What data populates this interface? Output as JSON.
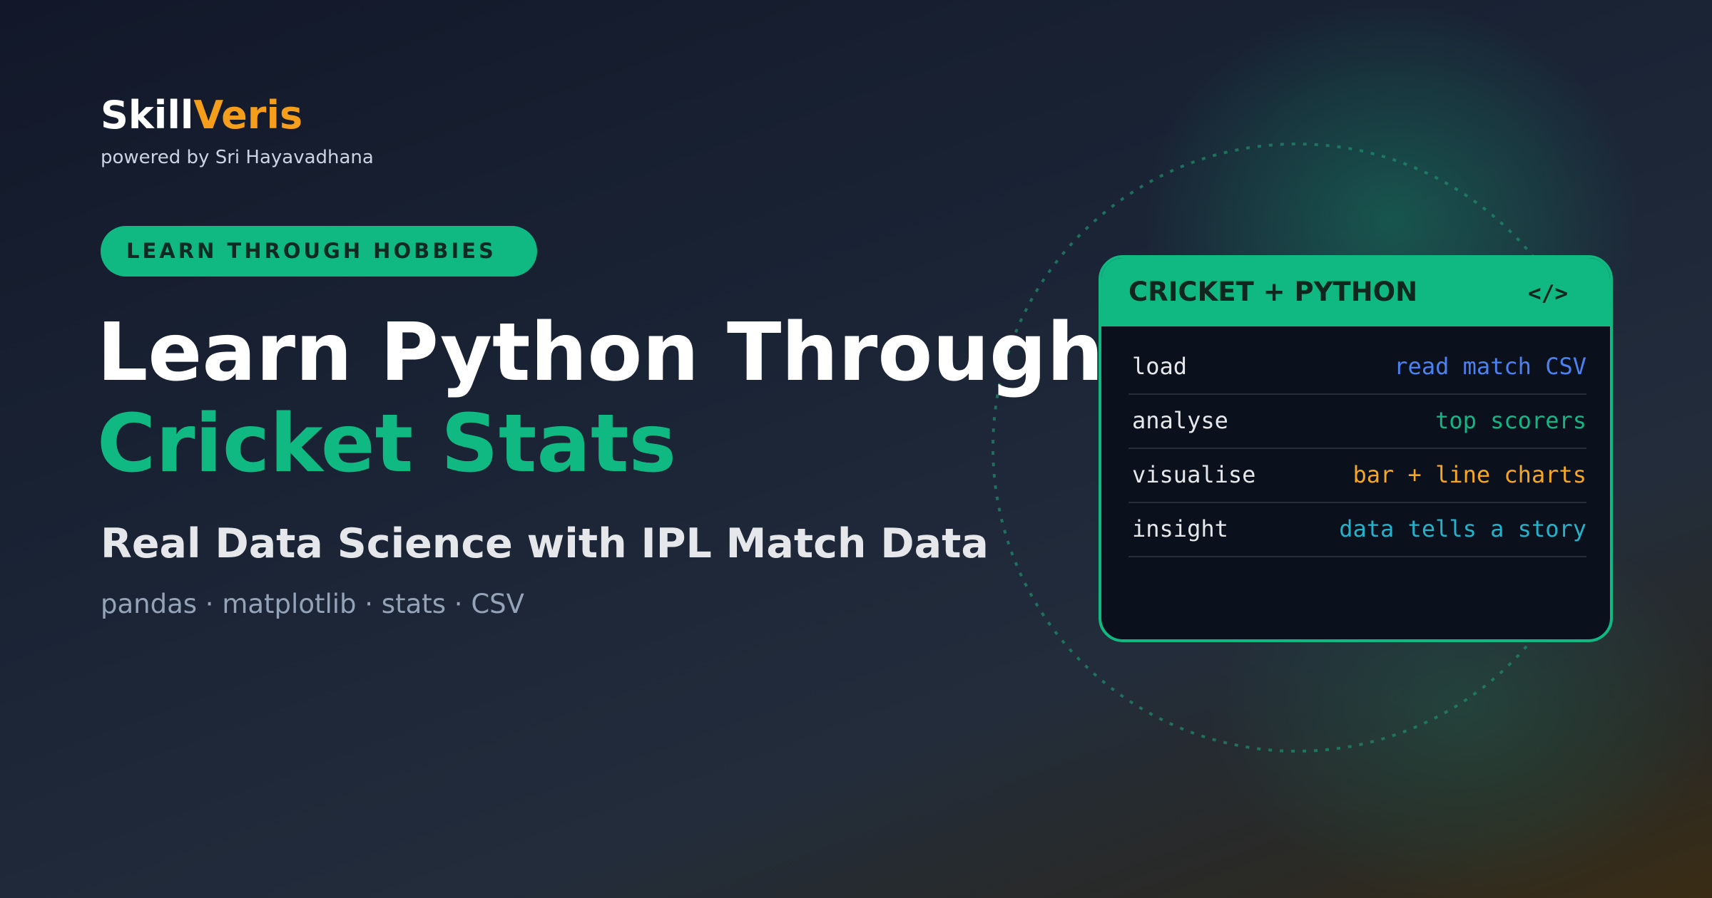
{
  "logo": {
    "part1": "Skill",
    "part2": "Veris",
    "tagline": "powered by Sri Hayavadhana"
  },
  "badge": "LEARN THROUGH HOBBIES",
  "heading": {
    "line1": "Learn Python Through",
    "line2": "Cricket Stats"
  },
  "subtitle": "Real Data Science with IPL Match Data",
  "topics": "pandas · matplotlib · stats · CSV",
  "card": {
    "title": "CRICKET + PYTHON",
    "icon": "</>",
    "rows": [
      {
        "label": "load",
        "value": "read match CSV"
      },
      {
        "label": "analyse",
        "value": "top scorers"
      },
      {
        "label": "visualise",
        "value": "bar + line charts"
      },
      {
        "label": "insight",
        "value": "data tells a story"
      }
    ]
  }
}
